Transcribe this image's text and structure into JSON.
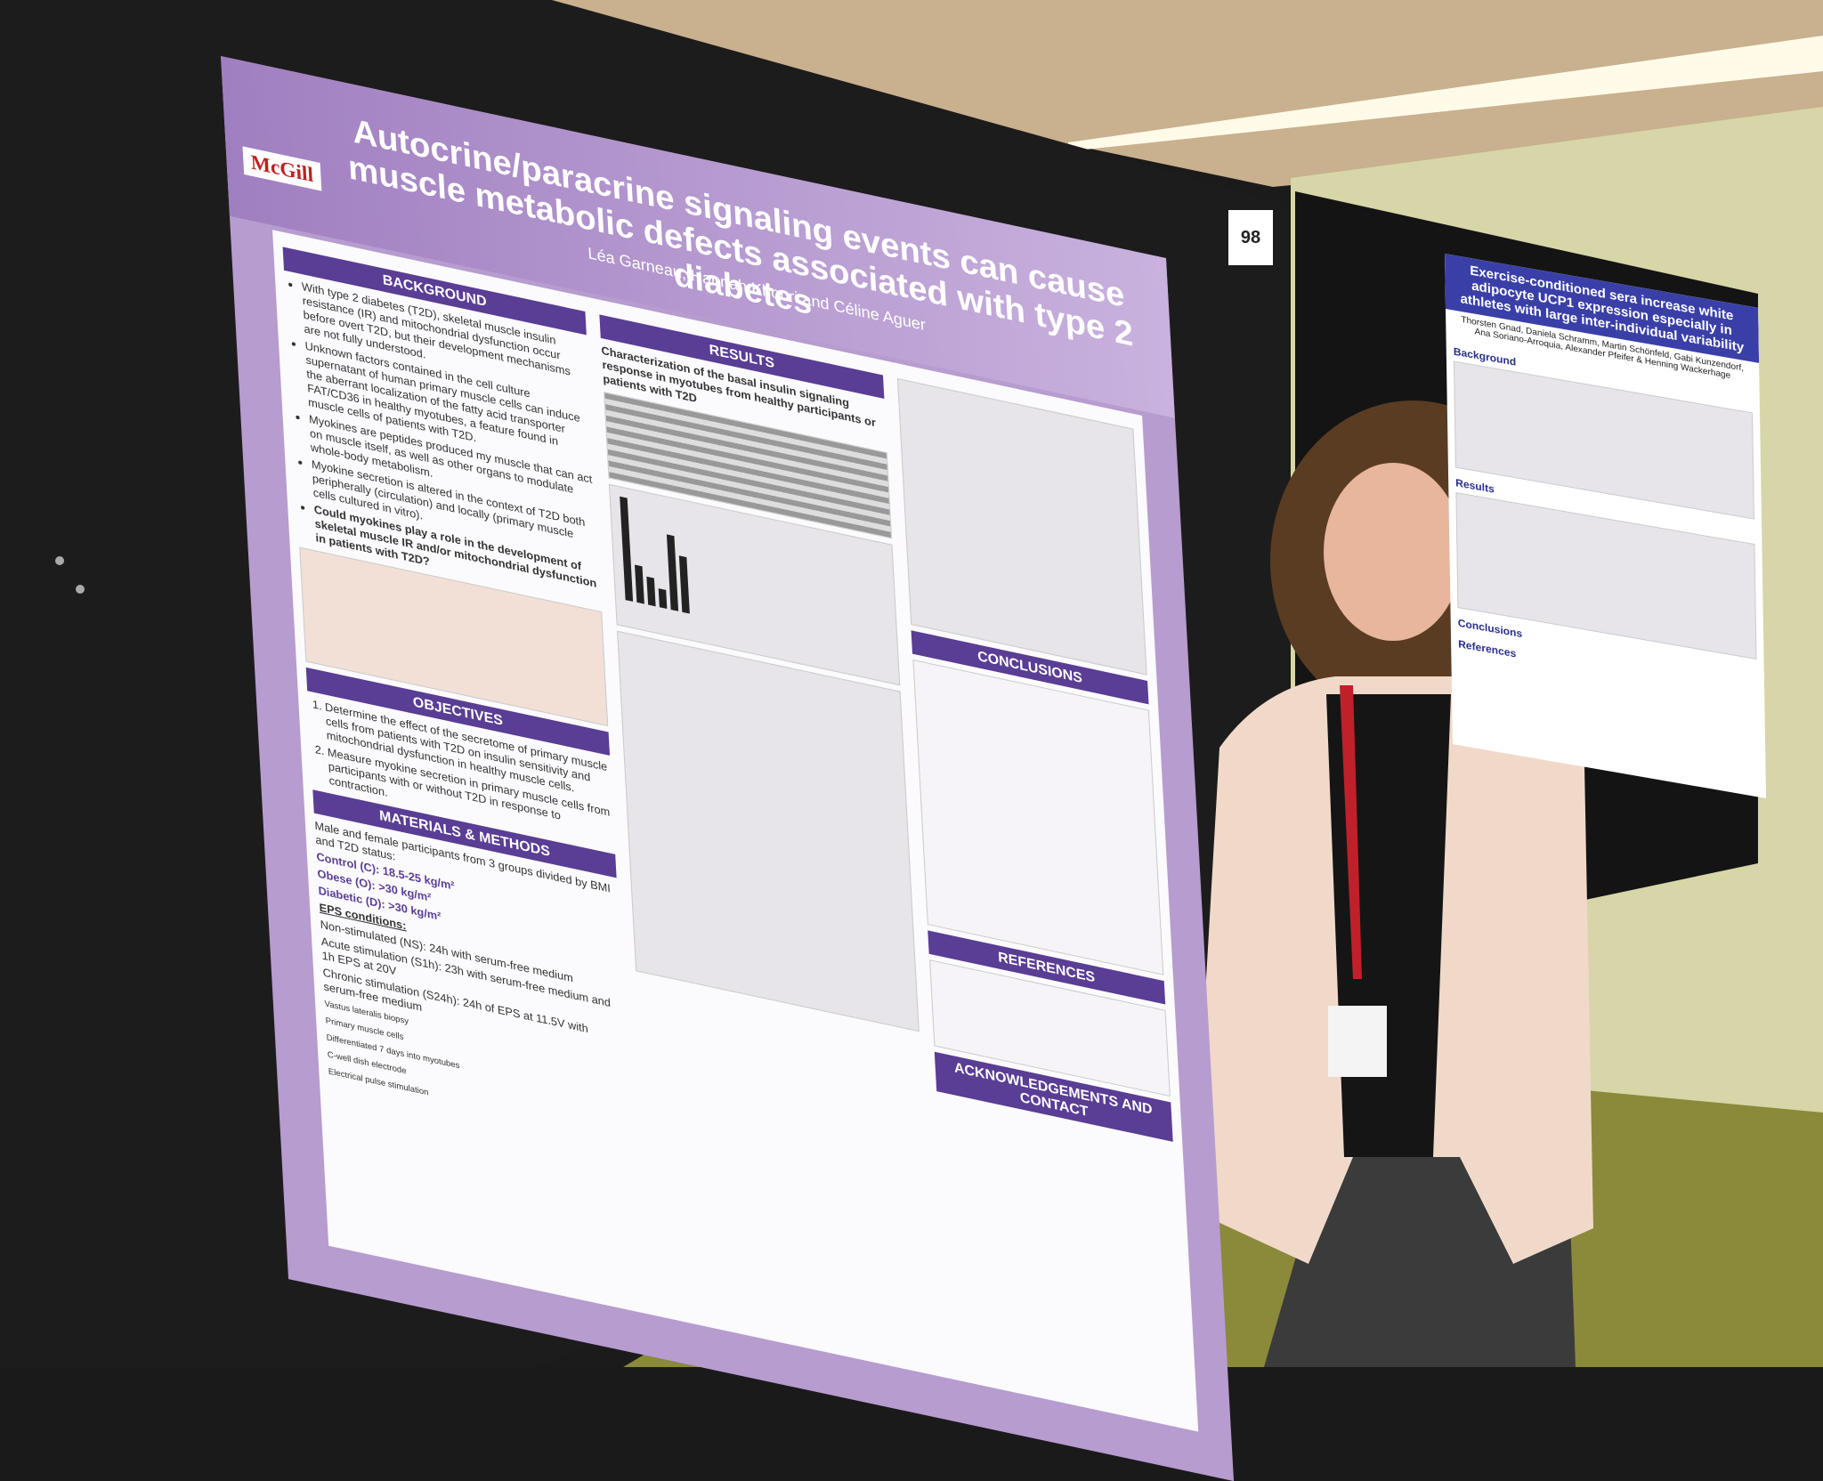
{
  "poster": {
    "board_number": "98",
    "logo": "McGill",
    "title": "Autocrine/paracrine signaling events can cause muscle metabolic defects associated with type 2 diabetes",
    "authors": "Léa Garneau, Hannah Khouri and Céline Aguer",
    "sections": {
      "background": {
        "heading": "BACKGROUND",
        "bullets": [
          "With type 2 diabetes (T2D), skeletal muscle insulin resistance (IR) and mitochondrial dysfunction occur before overt T2D, but their development mechanisms are not fully understood.",
          "Unknown factors contained in the cell culture supernatant of human primary muscle cells can induce the aberrant localization of the fatty acid transporter FAT/CD36 in healthy myotubes, a feature found in muscle cells of patients with T2D.",
          "Myokines are peptides produced my muscle that can act on muscle itself, as well as other organs to modulate whole-body metabolism.",
          "Myokine secretion is altered in the context of T2D both peripherally (circulation) and locally (primary muscle cells cultured in vitro).",
          "Could myokines play a role in the development of skeletal muscle IR and/or mitochondrial dysfunction in patients with T2D?"
        ]
      },
      "objectives": {
        "heading": "OBJECTIVES",
        "items": [
          "Determine the effect of the secretome of primary muscle cells from patients with T2D on insulin sensitivity and mitochondrial dysfunction in healthy muscle cells.",
          "Measure myokine secretion in primary muscle cells from participants with or without T2D in response to contraction."
        ]
      },
      "methods": {
        "heading": "MATERIALS & METHODS",
        "intro": "Male and female participants from 3 groups divided by BMI and T2D status:",
        "groups": [
          "Control (C): 18.5-25 kg/m²",
          "Obese (O): >30 kg/m²",
          "Diabetic (D): >30 kg/m²"
        ],
        "eps_heading": "EPS conditions:",
        "eps": [
          "Non-stimulated (NS): 24h with serum-free medium",
          "Acute stimulation (S1h): 23h with serum-free medium and 1h EPS at 20V",
          "Chronic stimulation (S24h): 24h of EPS at 11.5V with serum-free medium"
        ],
        "labels": [
          "Vastus lateralis biopsy",
          "Primary muscle cells",
          "Differentiated 7 days into myotubes",
          "C-well dish electrode",
          "Electrical pulse stimulation"
        ]
      },
      "results": {
        "heading": "RESULTS",
        "subheading": "Characterization of the basal insulin signaling response in myotubes from healthy participants or patients with T2D"
      },
      "conclusions": {
        "heading": "CONCLUSIONS"
      },
      "references": {
        "heading": "REFERENCES"
      },
      "acknowledgements": {
        "heading": "ACKNOWLEDGEMENTS AND CONTACT"
      }
    }
  },
  "neighbor_poster": {
    "title": "Exercise-conditioned sera increase white adipocyte UCP1 expression especially in athletes with large inter-individual variability",
    "authors": "Thorsten Gnad, Daniela Schramm, Martin Schönfeld, Gabi Kunzendorf, Ana Soriano-Arroquia, Alexander Pfeifer & Henning Wackerhage",
    "sections": [
      "Background",
      "Results",
      "Conclusions",
      "References"
    ]
  }
}
